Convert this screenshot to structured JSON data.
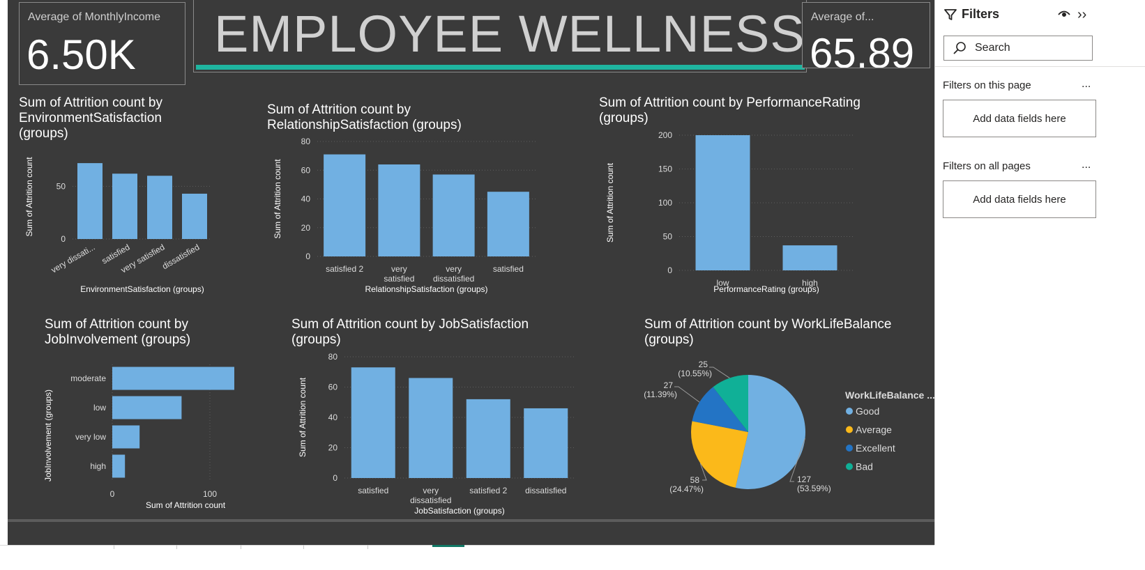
{
  "kpis": {
    "left": {
      "label": "Average of MonthlyIncome",
      "value": "6.50K"
    },
    "right": {
      "label": "Average of...",
      "value": "65.89"
    }
  },
  "banner": {
    "title": "EMPLOYEE WELLNESS",
    "underline_color": "#1fb5a0"
  },
  "filters_pane": {
    "title": "Filters",
    "search_placeholder": "Search",
    "sections": [
      {
        "label": "Filters on this page",
        "more": "...",
        "drop_text": "Add data fields here"
      },
      {
        "label": "Filters on all pages",
        "more": "...",
        "drop_text": "Add data fields here"
      }
    ]
  },
  "colors": {
    "bar": "#71b0e2",
    "canvas": "#3a3a3a",
    "grid": "#5e5e5e"
  },
  "chart_data": [
    {
      "id": "env",
      "type": "bar",
      "title": "Sum of Attrition count by\nEnvironmentSatisfaction\n(groups)",
      "xlabel": "EnvironmentSatisfaction (groups)",
      "ylabel": "Sum of Attrition count",
      "categories": [
        "very dissati...",
        "satisfied",
        "very satisfied",
        "dissatisfied"
      ],
      "values": [
        72,
        62,
        60,
        43
      ],
      "ylim": [
        0,
        80
      ],
      "yticks": [
        0,
        50
      ],
      "tick_rotation": -30,
      "grid": true
    },
    {
      "id": "rel",
      "type": "bar",
      "title": "Sum of Attrition count by\nRelationshipSatisfaction (groups)",
      "xlabel": "RelationshipSatisfaction (groups)",
      "ylabel": "Sum of Attrition count",
      "categories": [
        "satisfied 2",
        "very\nsatisfied",
        "very\ndissatisfied",
        "satisfied"
      ],
      "values": [
        71,
        64,
        57,
        45
      ],
      "ylim": [
        0,
        80
      ],
      "yticks": [
        0,
        20,
        40,
        60,
        80
      ],
      "grid": true
    },
    {
      "id": "perf",
      "type": "bar",
      "title": "Sum of Attrition count by PerformanceRating\n(groups)",
      "xlabel": "PerformanceRating (groups)",
      "ylabel": "Sum of Attrition count",
      "categories": [
        "low",
        "high"
      ],
      "values": [
        200,
        37
      ],
      "ylim": [
        0,
        200
      ],
      "yticks": [
        0,
        50,
        100,
        150,
        200
      ],
      "grid": true
    },
    {
      "id": "job_inv",
      "type": "bar",
      "orientation": "horizontal",
      "title": "Sum of Attrition count by\nJobInvolvement (groups)",
      "xlabel": "Sum of Attrition count",
      "ylabel": "JobInvolvement (groups)",
      "categories": [
        "moderate",
        "low",
        "very low",
        "high"
      ],
      "values": [
        125,
        71,
        28,
        13
      ],
      "xlim": [
        0,
        125
      ],
      "xticks": [
        0,
        100
      ],
      "grid": true
    },
    {
      "id": "job_sat",
      "type": "bar",
      "title": "Sum of Attrition count by JobSatisfaction\n(groups)",
      "xlabel": "JobSatisfaction (groups)",
      "ylabel": "Sum of Attrition count",
      "categories": [
        "satisfied",
        "very\ndissatisfied",
        "satisfied 2",
        "dissatisfied"
      ],
      "values": [
        73,
        66,
        52,
        46
      ],
      "ylim": [
        0,
        80
      ],
      "yticks": [
        0,
        20,
        40,
        60,
        80
      ],
      "grid": true
    },
    {
      "id": "wlb",
      "type": "pie",
      "title": "Sum of Attrition count by WorkLifeBalance\n(groups)",
      "legend_title": "WorkLifeBalance ...",
      "legend_position": "right",
      "slices": [
        {
          "name": "Good",
          "value": 127,
          "label": "127",
          "pct": "(53.59%)",
          "color": "#71b0e2"
        },
        {
          "name": "Average",
          "value": 58,
          "label": "58",
          "pct": "(24.47%)",
          "color": "#fbb91a"
        },
        {
          "name": "Excellent",
          "value": 27,
          "label": "27",
          "pct": "(11.39%)",
          "color": "#2374c5"
        },
        {
          "name": "Bad",
          "value": 25,
          "label": "25",
          "pct": "(10.55%)",
          "color": "#10b097"
        }
      ]
    }
  ]
}
